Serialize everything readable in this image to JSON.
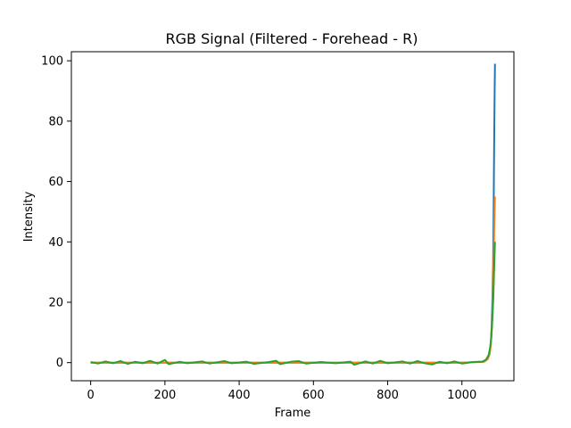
{
  "chart_data": {
    "type": "line",
    "title": "RGB Signal (Filtered - Forehead - R)",
    "xlabel": "Frame",
    "ylabel": "Intensity",
    "xlim": [
      -52,
      1140
    ],
    "ylim": [
      -6,
      103
    ],
    "xticks": [
      0,
      200,
      400,
      600,
      800,
      1000
    ],
    "yticks": [
      0,
      20,
      40,
      60,
      80,
      100
    ],
    "grid": false,
    "series": [
      {
        "color": "#1f77b4",
        "points": [
          [
            0,
            0
          ],
          [
            200,
            0
          ],
          [
            400,
            0
          ],
          [
            600,
            0
          ],
          [
            800,
            0
          ],
          [
            1000,
            0
          ],
          [
            1060,
            0.3
          ],
          [
            1070,
            1.5
          ],
          [
            1075,
            3.5
          ],
          [
            1078,
            7
          ],
          [
            1080,
            12
          ],
          [
            1082,
            20
          ],
          [
            1084,
            32
          ],
          [
            1085,
            45
          ],
          [
            1086,
            60
          ],
          [
            1087,
            75
          ],
          [
            1088,
            88
          ],
          [
            1089,
            99
          ]
        ]
      },
      {
        "color": "#ff7f0e",
        "points": [
          [
            0,
            0
          ],
          [
            200,
            0
          ],
          [
            400,
            0
          ],
          [
            600,
            0
          ],
          [
            800,
            0
          ],
          [
            1000,
            0
          ],
          [
            1060,
            0.3
          ],
          [
            1070,
            1.2
          ],
          [
            1075,
            3
          ],
          [
            1078,
            6
          ],
          [
            1080,
            10
          ],
          [
            1082,
            16
          ],
          [
            1084,
            24
          ],
          [
            1085,
            30
          ],
          [
            1086,
            37
          ],
          [
            1087,
            44
          ],
          [
            1088,
            50
          ],
          [
            1089,
            55
          ]
        ]
      },
      {
        "color": "#2ca02c",
        "points": [
          [
            0,
            0.2
          ],
          [
            20,
            -0.3
          ],
          [
            40,
            0.4
          ],
          [
            60,
            -0.2
          ],
          [
            80,
            0.5
          ],
          [
            100,
            -0.4
          ],
          [
            120,
            0.3
          ],
          [
            140,
            -0.2
          ],
          [
            160,
            0.6
          ],
          [
            180,
            -0.3
          ],
          [
            200,
            0.9
          ],
          [
            210,
            -0.5
          ],
          [
            240,
            0.3
          ],
          [
            260,
            -0.2
          ],
          [
            300,
            0.4
          ],
          [
            320,
            -0.3
          ],
          [
            360,
            0.5
          ],
          [
            380,
            -0.2
          ],
          [
            420,
            0.3
          ],
          [
            440,
            -0.4
          ],
          [
            480,
            0.2
          ],
          [
            500,
            0.6
          ],
          [
            510,
            -0.5
          ],
          [
            540,
            0.3
          ],
          [
            560,
            0.5
          ],
          [
            580,
            -0.3
          ],
          [
            620,
            0.2
          ],
          [
            660,
            -0.2
          ],
          [
            700,
            0.3
          ],
          [
            710,
            -0.7
          ],
          [
            740,
            0.4
          ],
          [
            760,
            -0.3
          ],
          [
            780,
            0.6
          ],
          [
            800,
            -0.2
          ],
          [
            840,
            0.4
          ],
          [
            860,
            -0.3
          ],
          [
            880,
            0.5
          ],
          [
            900,
            -0.2
          ],
          [
            920,
            -0.6
          ],
          [
            940,
            0.3
          ],
          [
            960,
            -0.2
          ],
          [
            980,
            0.4
          ],
          [
            1000,
            -0.3
          ],
          [
            1030,
            0.2
          ],
          [
            1055,
            0.3
          ],
          [
            1065,
            1
          ],
          [
            1072,
            2.5
          ],
          [
            1076,
            5
          ],
          [
            1079,
            8
          ],
          [
            1081,
            12
          ],
          [
            1083,
            17
          ],
          [
            1085,
            23
          ],
          [
            1086,
            28
          ],
          [
            1087,
            32
          ],
          [
            1088,
            36
          ],
          [
            1089,
            40
          ]
        ]
      }
    ]
  }
}
